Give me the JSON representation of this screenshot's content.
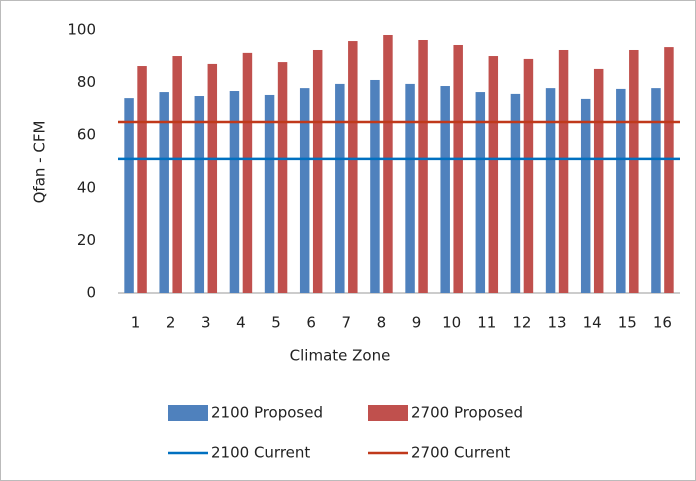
{
  "chart_data": {
    "type": "bar",
    "categories": [
      "1",
      "2",
      "3",
      "4",
      "5",
      "6",
      "7",
      "8",
      "9",
      "10",
      "11",
      "12",
      "13",
      "14",
      "15",
      "16"
    ],
    "x_label": "Climate Zone",
    "y_label": "Qfan - CFM",
    "ylim": [
      0,
      100
    ],
    "yticks": [
      0,
      20,
      40,
      60,
      80,
      100
    ],
    "grid": false,
    "series": [
      {
        "name": "2100 Proposed",
        "kind": "bar",
        "color": "#4f81bd",
        "values": [
          74.1,
          76.4,
          74.9,
          76.8,
          75.3,
          77.9,
          79.5,
          81,
          79.5,
          78.7,
          76.4,
          75.7,
          77.9,
          73.8,
          77.6,
          77.9
        ]
      },
      {
        "name": "2700 Proposed",
        "kind": "bar",
        "color": "#c0504d",
        "values": [
          86.3,
          90.1,
          87.1,
          91.3,
          87.8,
          92.4,
          95.8,
          98.1,
          96.2,
          94.3,
          90.1,
          89,
          92.4,
          85.2,
          92.4,
          93.5
        ]
      },
      {
        "name": "2100 Current",
        "kind": "line",
        "color": "#0070c0",
        "values": [
          51,
          51,
          51,
          51,
          51,
          51,
          51,
          51,
          51,
          51,
          51,
          51,
          51,
          51,
          51,
          51
        ]
      },
      {
        "name": "2700 Current",
        "kind": "line",
        "color": "#c0391b",
        "values": [
          65,
          65,
          65,
          65,
          65,
          65,
          65,
          65,
          65,
          65,
          65,
          65,
          65,
          65,
          65,
          65
        ]
      }
    ]
  }
}
